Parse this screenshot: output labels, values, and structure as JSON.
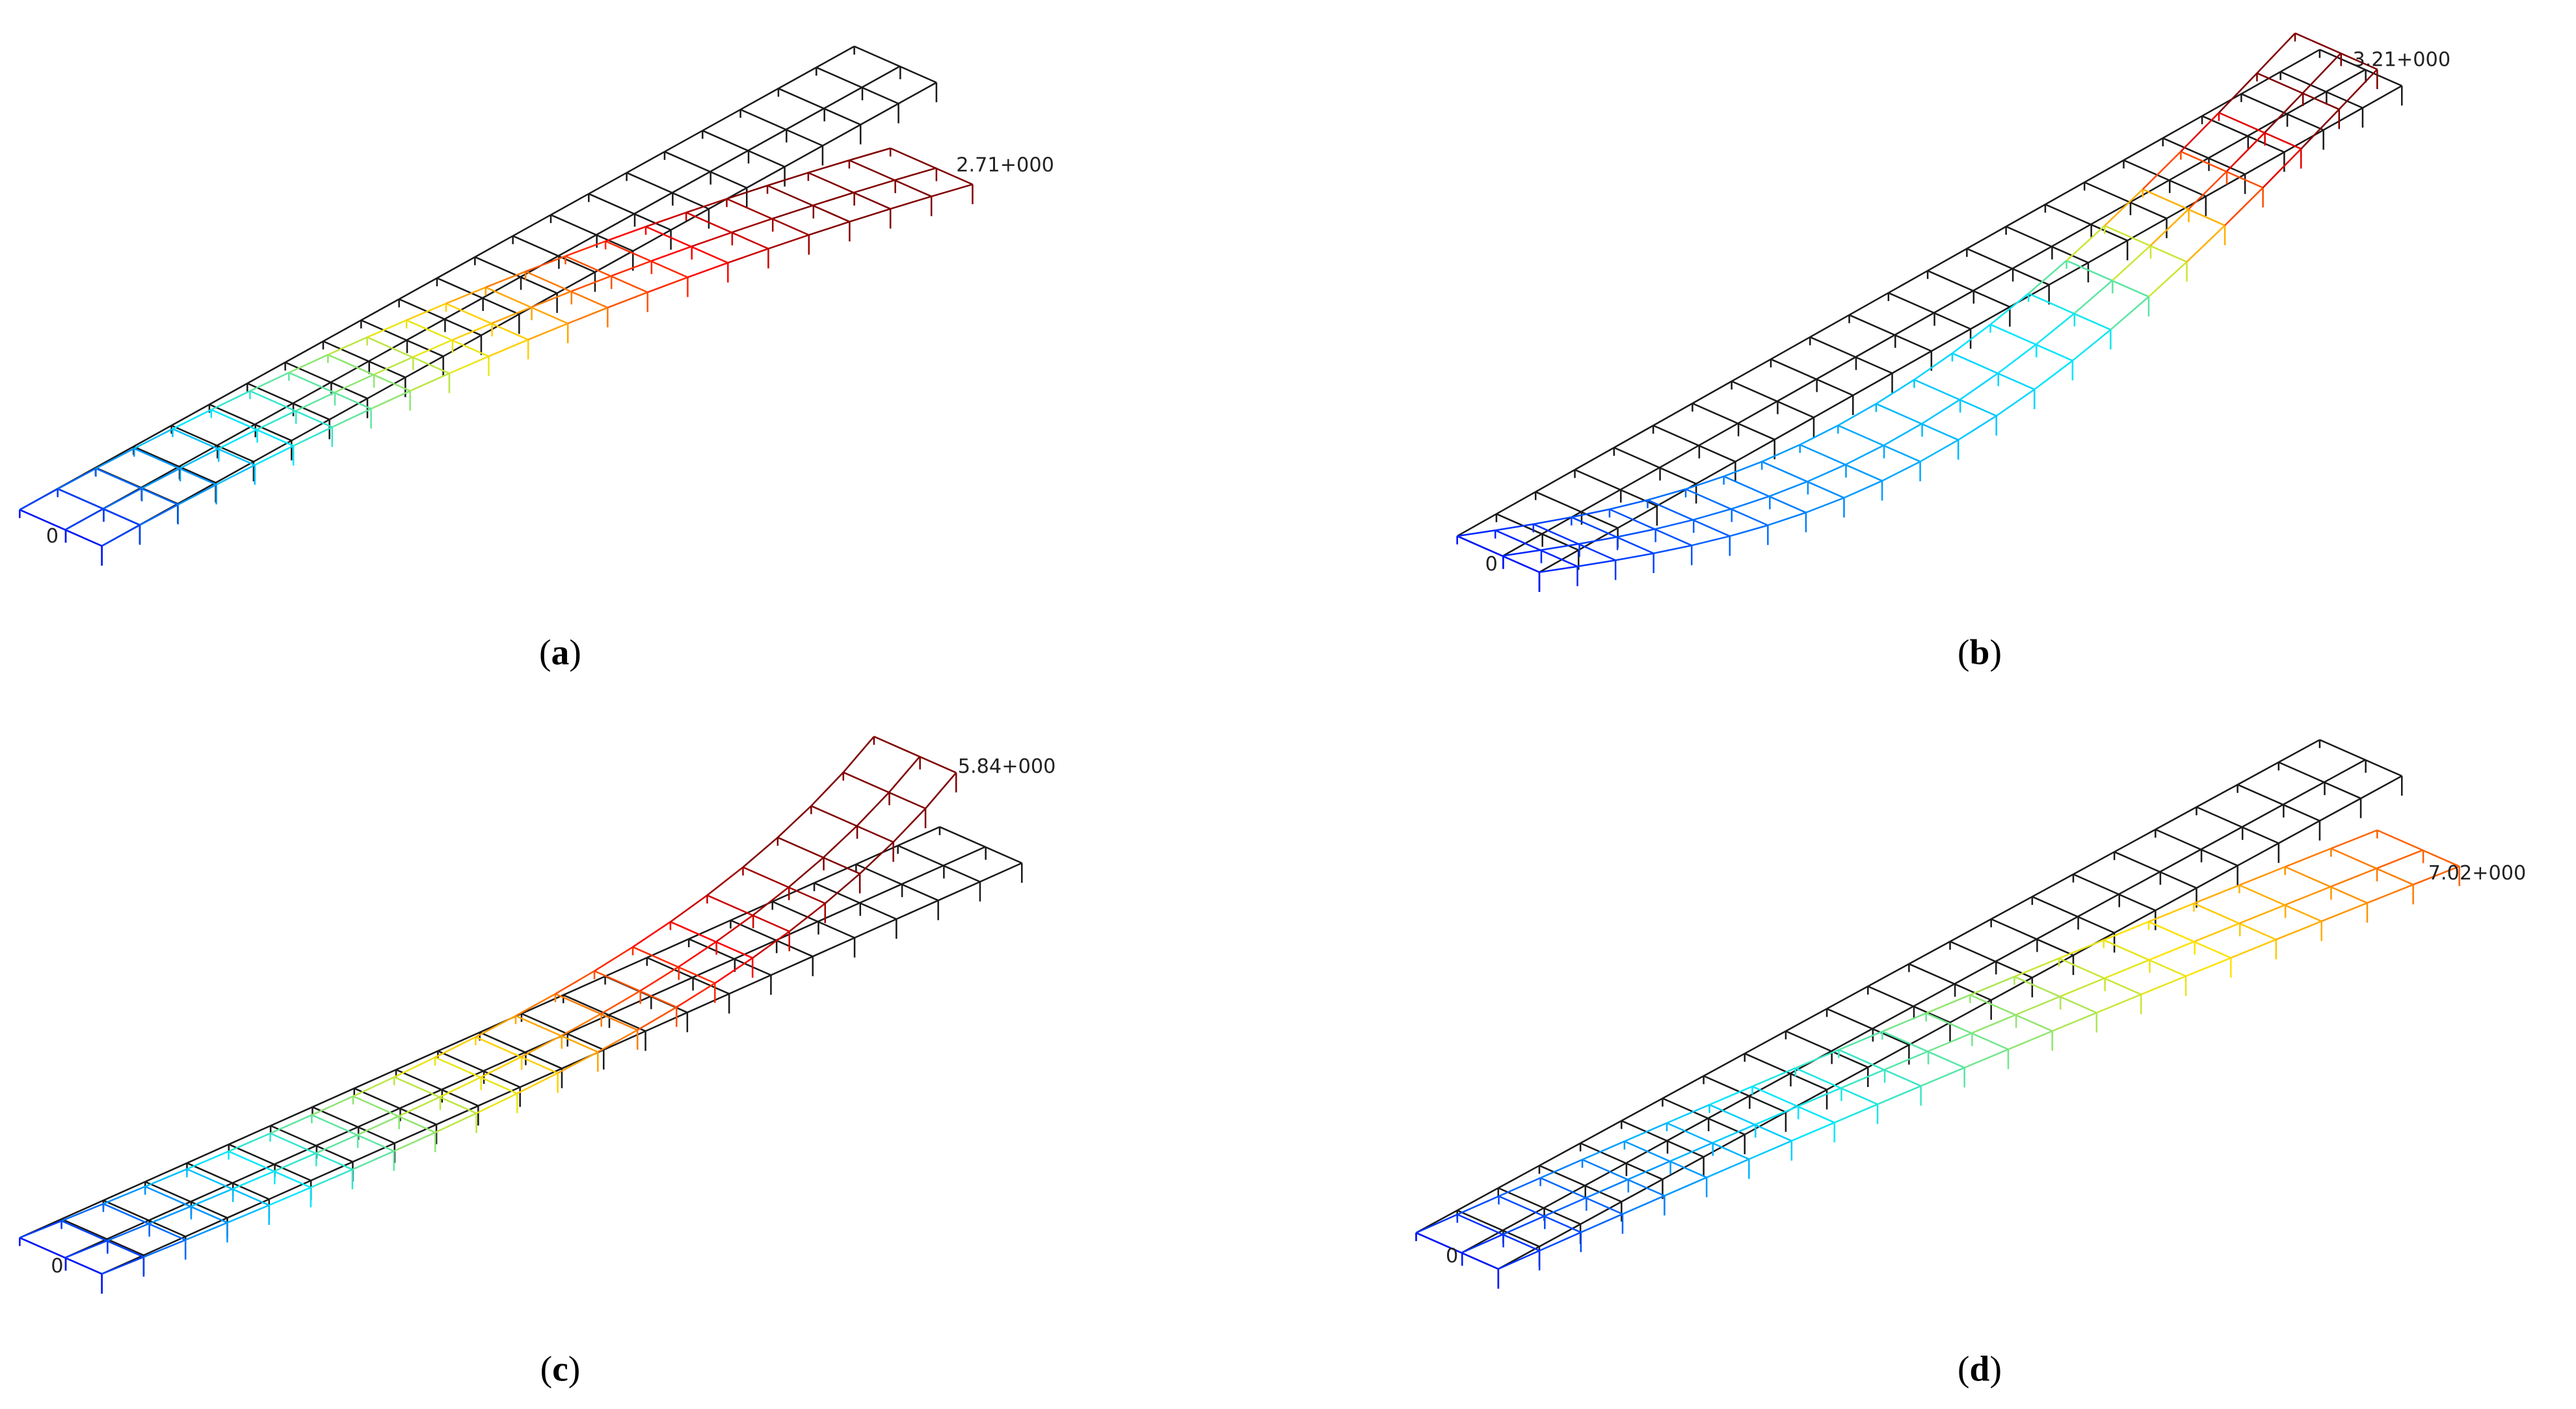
{
  "panels": [
    {
      "min_label": "0",
      "max_label": "2.71+000",
      "caption": [
        "(",
        "a",
        ")"
      ]
    },
    {
      "min_label": "0",
      "max_label": "3.21+000",
      "caption": [
        "(",
        "b",
        ")"
      ]
    },
    {
      "min_label": "0",
      "max_label": "5.84+000",
      "caption": [
        "(",
        "c",
        ")"
      ]
    },
    {
      "min_label": "0",
      "max_label": "7.02+000",
      "caption": [
        "(",
        "d",
        ")"
      ]
    }
  ]
}
